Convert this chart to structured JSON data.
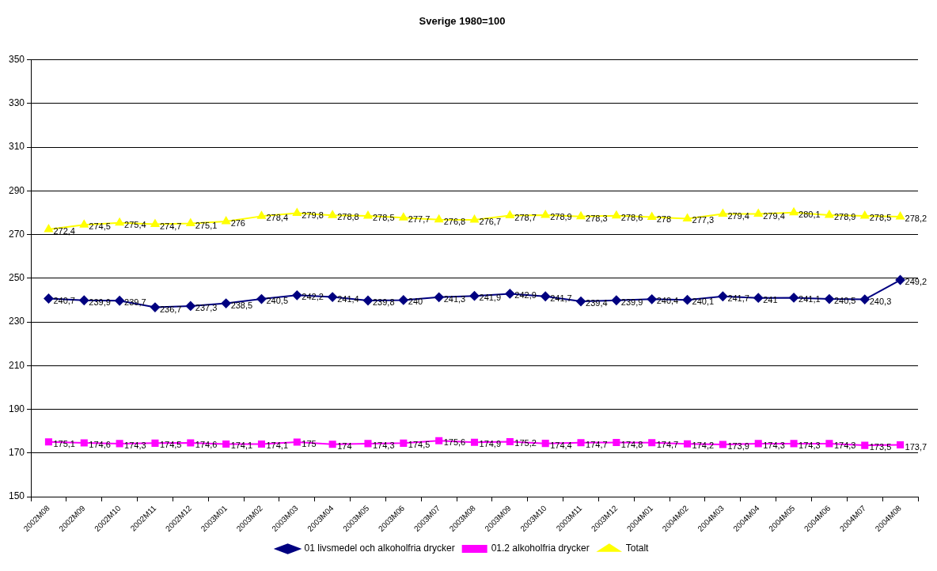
{
  "chart_data": {
    "type": "line",
    "title": "Sverige 1980=100",
    "categories": [
      "2002M08",
      "2002M09",
      "2002M10",
      "2002M11",
      "2002M12",
      "2003M01",
      "2003M02",
      "2003M03",
      "2003M04",
      "2003M05",
      "2003M06",
      "2003M07",
      "2003M08",
      "2003M09",
      "2003M10",
      "2003M11",
      "2003M12",
      "2004M01",
      "2004M02",
      "2004M03",
      "2004M04",
      "2004M05",
      "2004M06",
      "2004M07",
      "2004M08"
    ],
    "series": [
      {
        "name": "01 livsmedel och alkoholfria drycker",
        "color": "#000080",
        "marker": "diamond",
        "values": [
          240.7,
          239.9,
          239.7,
          236.7,
          237.3,
          238.5,
          240.5,
          242.2,
          241.4,
          239.8,
          240,
          241.3,
          241.9,
          242.9,
          241.7,
          239.4,
          239.9,
          240.4,
          240.1,
          241.7,
          241,
          241.1,
          240.5,
          240.3,
          249.2
        ],
        "value_labels": [
          "240,7",
          "239,9",
          "239,7",
          "236,7",
          "237,3",
          "238,5",
          "240,5",
          "242,2",
          "241,4",
          "239,8",
          "240",
          "241,3",
          "241,9",
          "242,9",
          "241,7",
          "239,4",
          "239,9",
          "240,4",
          "240,1",
          "241,7",
          "241",
          "241,1",
          "240,5",
          "240,3",
          "249,2"
        ]
      },
      {
        "name": "01.2 alkoholfria drycker",
        "color": "#ff00ff",
        "marker": "square",
        "values": [
          175.1,
          174.6,
          174.3,
          174.5,
          174.6,
          174.1,
          174.1,
          175,
          174,
          174.3,
          174.5,
          175.6,
          174.9,
          175.2,
          174.4,
          174.7,
          174.8,
          174.7,
          174.2,
          173.9,
          174.3,
          174.3,
          174.3,
          173.5,
          173.7
        ],
        "value_labels": [
          "175,1",
          "174,6",
          "174,3",
          "174,5",
          "174,6",
          "174,1",
          "174,1",
          "175",
          "174",
          "174,3",
          "174,5",
          "175,6",
          "174,9",
          "175,2",
          "174,4",
          "174,7",
          "174,8",
          "174,7",
          "174,2",
          "173,9",
          "174,3",
          "174,3",
          "174,3",
          "173,5",
          "173,7"
        ]
      },
      {
        "name": "Totalt",
        "color": "#ffff00",
        "marker": "triangle",
        "values": [
          272.4,
          274.5,
          275.4,
          274.7,
          275.1,
          276,
          278.4,
          279.8,
          278.8,
          278.5,
          277.7,
          276.8,
          276.7,
          278.7,
          278.9,
          278.3,
          278.6,
          278,
          277.3,
          279.4,
          279.4,
          280.1,
          278.9,
          278.5,
          278.2
        ],
        "value_labels": [
          "272,4",
          "274,5",
          "275,4",
          "274,7",
          "275,1",
          "276",
          "278,4",
          "279,8",
          "278,8",
          "278,5",
          "277,7",
          "276,8",
          "276,7",
          "278,7",
          "278,9",
          "278,3",
          "278,6",
          "278",
          "277,3",
          "279,4",
          "279,4",
          "280,1",
          "278,9",
          "278,5",
          "278,2"
        ]
      }
    ],
    "ylim": [
      150,
      350
    ],
    "yticks": [
      150,
      170,
      190,
      210,
      230,
      250,
      270,
      290,
      310,
      330,
      350
    ],
    "grid": "y",
    "legend": "bottom"
  }
}
